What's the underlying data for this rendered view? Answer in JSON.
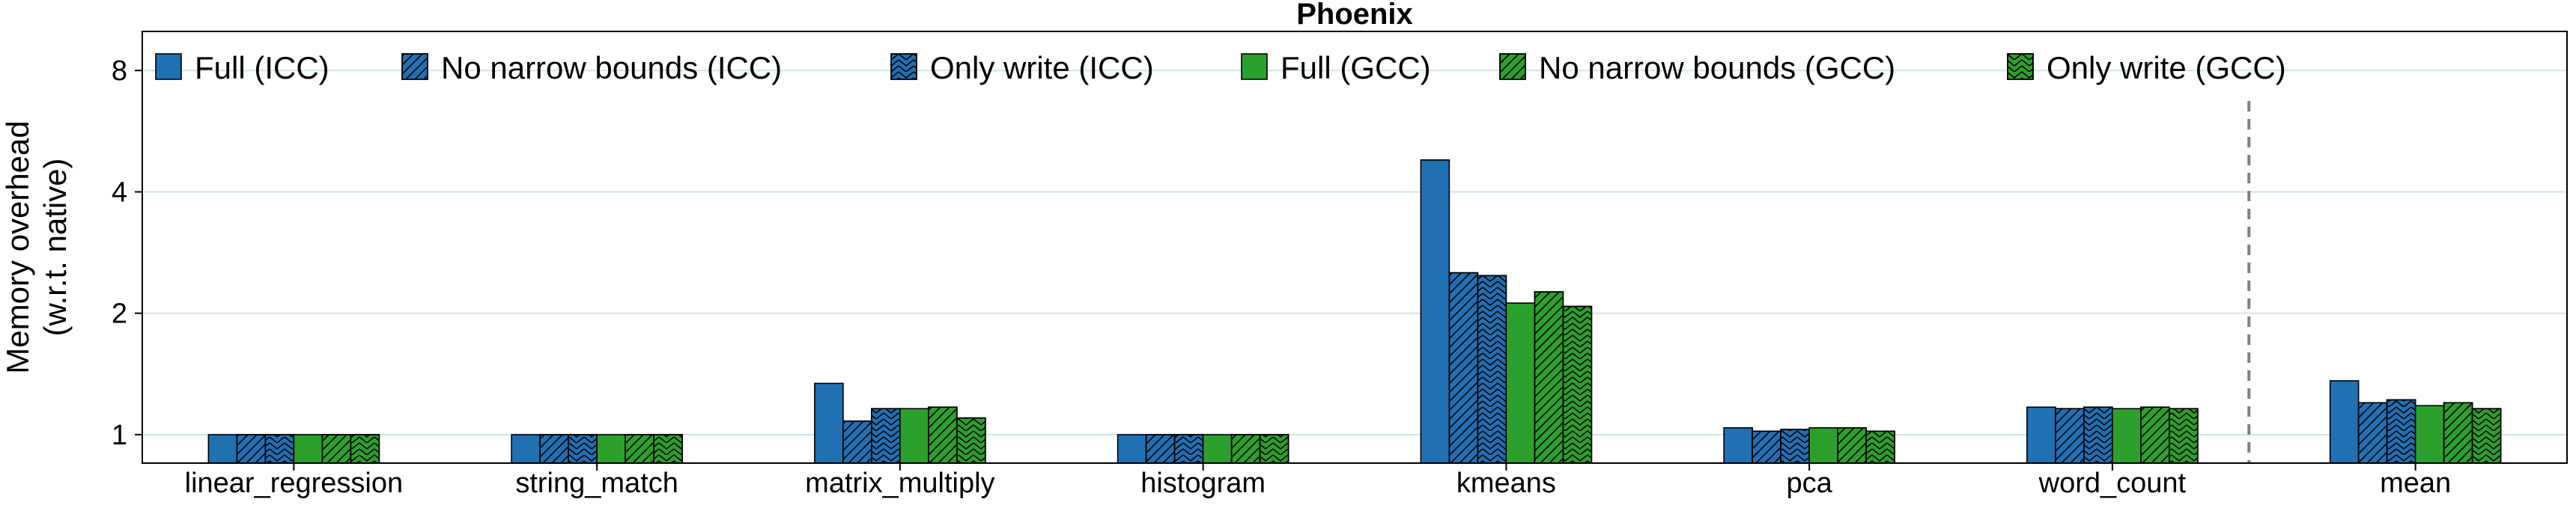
{
  "chart_data": {
    "type": "bar",
    "title": "Phoenix",
    "ylabel": "Memory overhead (w.r.t. native)",
    "ylabel_lines": [
      "Memory overhead",
      "(w.r.t. native)"
    ],
    "xlabel": "",
    "yscale": "log2",
    "ylim": [
      0.85,
      10.0
    ],
    "yticks": [
      1,
      2,
      4,
      8
    ],
    "ytick_labels": [
      "1",
      "2",
      "4",
      "8"
    ],
    "grid": "horizontal",
    "legend_position": "top, inside plot",
    "separator_before_last_category": true,
    "categories": [
      "linear_regression",
      "string_match",
      "matrix_multiply",
      "histogram",
      "kmeans",
      "pca",
      "word_count",
      "mean"
    ],
    "series": [
      {
        "name": "Full (ICC)",
        "color": "#2070b4",
        "hatch": "none",
        "values": [
          1.0,
          1.0,
          1.34,
          1.0,
          4.8,
          1.04,
          1.17,
          1.36
        ]
      },
      {
        "name": "No narrow bounds (ICC)",
        "color": "#2070b4",
        "hatch": "diagonal",
        "values": [
          1.0,
          1.0,
          1.08,
          1.0,
          2.52,
          1.02,
          1.16,
          1.2
        ]
      },
      {
        "name": "Only write (ICC)",
        "color": "#2070b4",
        "hatch": "chevron",
        "values": [
          1.0,
          1.0,
          1.16,
          1.0,
          2.48,
          1.03,
          1.17,
          1.22
        ]
      },
      {
        "name": "Full (GCC)",
        "color": "#2ca02c",
        "hatch": "none",
        "values": [
          1.0,
          1.0,
          1.16,
          1.0,
          2.12,
          1.04,
          1.16,
          1.18
        ]
      },
      {
        "name": "No narrow bounds (GCC)",
        "color": "#2ca02c",
        "hatch": "diagonal",
        "values": [
          1.0,
          1.0,
          1.17,
          1.0,
          2.26,
          1.04,
          1.17,
          1.2
        ]
      },
      {
        "name": "Only write (GCC)",
        "color": "#2ca02c",
        "hatch": "chevron",
        "values": [
          1.0,
          1.0,
          1.1,
          1.0,
          2.08,
          1.02,
          1.16,
          1.16
        ]
      }
    ]
  }
}
